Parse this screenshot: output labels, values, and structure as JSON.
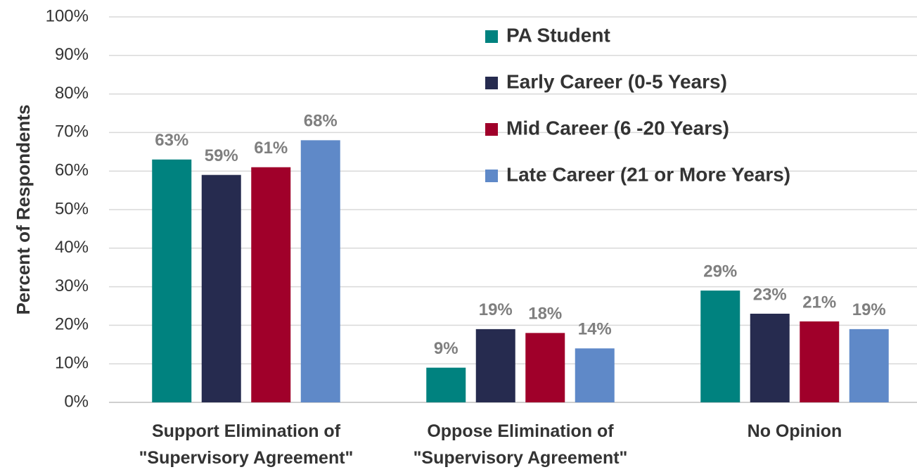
{
  "chart_data": {
    "type": "bar",
    "y_label": "Percent of Respondents",
    "categories": [
      "Support Elimination of\n\"Supervisory Agreement\"",
      "Oppose Elimination of\n\"Supervisory Agreement\"",
      "No Opinion"
    ],
    "series": [
      {
        "name": "PA Student",
        "color": "#00827f",
        "values": [
          63,
          9,
          29
        ],
        "value_labels": [
          "63%",
          "9%",
          "29%"
        ]
      },
      {
        "name": "Early Career (0-5 Years)",
        "color": "#262b4f",
        "values": [
          59,
          19,
          23
        ],
        "value_labels": [
          "59%",
          "19%",
          "23%"
        ]
      },
      {
        "name": "Mid Career (6 -20 Years)",
        "color": "#a0002a",
        "values": [
          61,
          18,
          21
        ],
        "value_labels": [
          "61%",
          "18%",
          "21%"
        ]
      },
      {
        "name": "Late Career (21 or More Years)",
        "color": "#5f89c8",
        "values": [
          68,
          14,
          19
        ],
        "value_labels": [
          "68%",
          "14%",
          "19%"
        ]
      }
    ],
    "ylim": [
      0,
      100
    ],
    "yticks": [
      {
        "value": 0,
        "label": "0%"
      },
      {
        "value": 10,
        "label": "10%"
      },
      {
        "value": 20,
        "label": "20%"
      },
      {
        "value": 30,
        "label": "30%"
      },
      {
        "value": 40,
        "label": "40%"
      },
      {
        "value": 50,
        "label": "50%"
      },
      {
        "value": 60,
        "label": "60%"
      },
      {
        "value": 70,
        "label": "70%"
      },
      {
        "value": 80,
        "label": "80%"
      },
      {
        "value": 90,
        "label": "90%"
      },
      {
        "value": 100,
        "label": "100%"
      }
    ],
    "grid": true,
    "legend": "upper right"
  }
}
